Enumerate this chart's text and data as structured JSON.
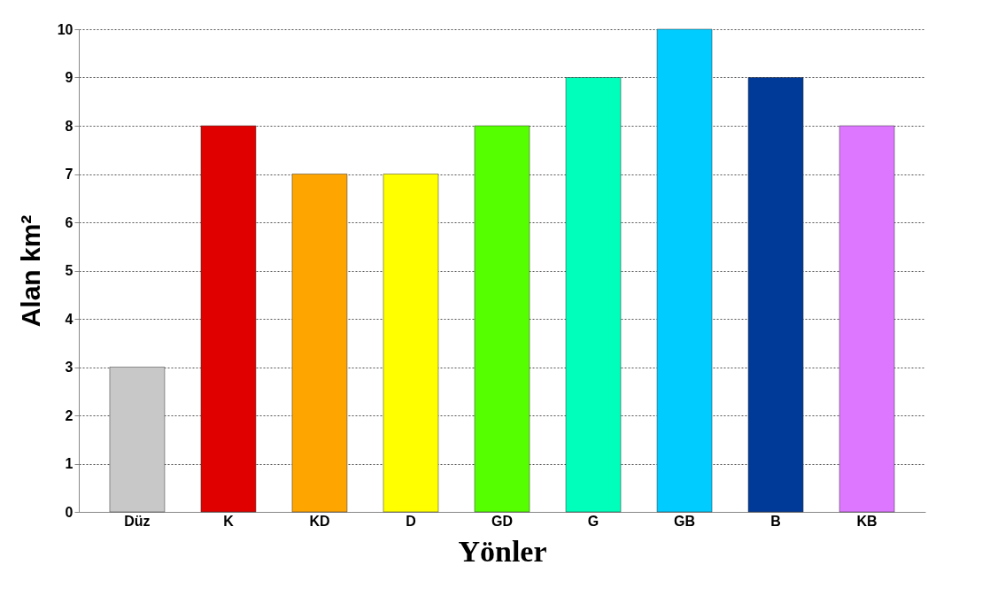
{
  "chart_data": {
    "type": "bar",
    "xlabel": "Yönler",
    "ylabel": "Alan km²",
    "categories": [
      "Düz",
      "K",
      "KD",
      "D",
      "GD",
      "G",
      "GB",
      "B",
      "KB"
    ],
    "values": [
      3,
      8,
      7,
      7,
      8,
      9,
      10,
      9,
      8
    ],
    "colors": [
      "#c8c8c8",
      "#e00000",
      "#ffa500",
      "#ffff00",
      "#55ff00",
      "#00ffbb",
      "#00ccff",
      "#003a99",
      "#dd77ff"
    ],
    "ylim": [
      0,
      10
    ],
    "yticks": [
      0,
      1,
      2,
      3,
      4,
      5,
      6,
      7,
      8,
      9,
      10
    ],
    "grid": "y"
  }
}
